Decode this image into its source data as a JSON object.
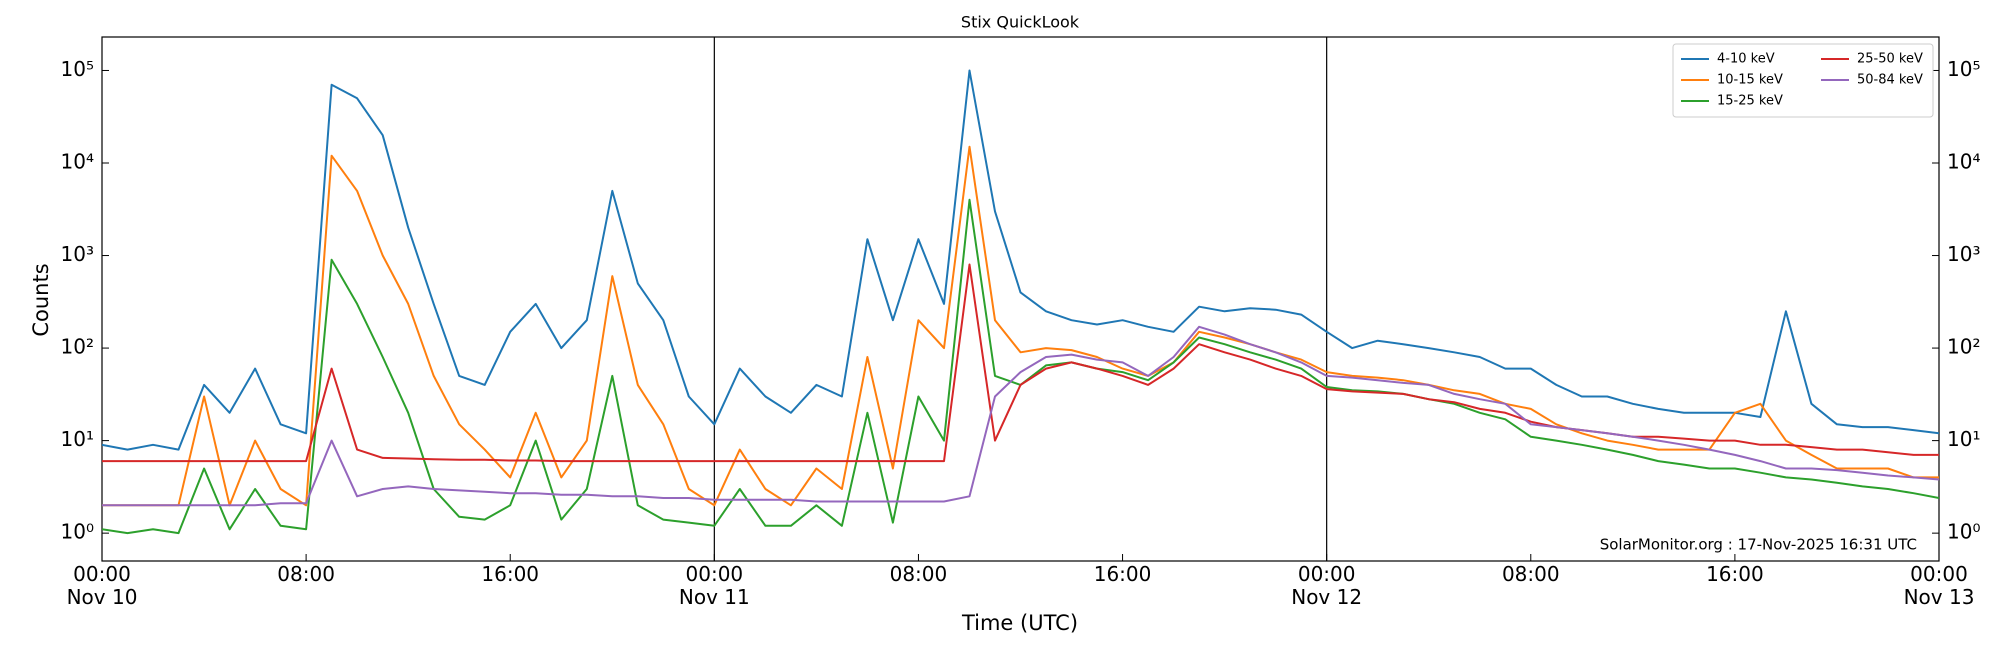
{
  "chart_data": {
    "type": "line",
    "title": "Stix QuickLook",
    "xlabel": "Time (UTC)",
    "ylabel": "Counts",
    "annotation": "SolarMonitor.org : 17-Nov-2025 16:31 UTC",
    "log_y": true,
    "legend": "upper right",
    "legend_columns": 2,
    "day_lines": true,
    "xlim": [
      "Nov 10 00:00",
      "Nov 13 00:00"
    ],
    "xticks": [
      {
        "value": "Nov 10 00:00",
        "label": "00:00\nNov 10"
      },
      {
        "value": "Nov 10 08:00",
        "label": "08:00"
      },
      {
        "value": "Nov 10 16:00",
        "label": "16:00"
      },
      {
        "value": "Nov 11 00:00",
        "label": "00:00\nNov 11"
      },
      {
        "value": "Nov 11 08:00",
        "label": "08:00"
      },
      {
        "value": "Nov 11 16:00",
        "label": "16:00"
      },
      {
        "value": "Nov 12 00:00",
        "label": "00:00\nNov 12"
      },
      {
        "value": "Nov 12 08:00",
        "label": "08:00"
      },
      {
        "value": "Nov 12 16:00",
        "label": "16:00"
      },
      {
        "value": "Nov 13 00:00",
        "label": "00:00\nNov 13"
      }
    ],
    "ylim": [
      0.5,
      230000
    ],
    "yticks": [
      {
        "value": 1,
        "label": "10⁰"
      },
      {
        "value": 10,
        "label": "10¹"
      },
      {
        "value": 100,
        "label": "10²"
      },
      {
        "value": 1000,
        "label": "10³"
      },
      {
        "value": 10000,
        "label": "10⁴"
      },
      {
        "value": 100000,
        "label": "10⁵"
      }
    ],
    "x": [
      "Nov 10 00:00",
      "Nov 10 01:00",
      "Nov 10 02:00",
      "Nov 10 03:00",
      "Nov 10 04:00",
      "Nov 10 05:00",
      "Nov 10 06:00",
      "Nov 10 07:00",
      "Nov 10 08:00",
      "Nov 10 09:00",
      "Nov 10 10:00",
      "Nov 10 11:00",
      "Nov 10 12:00",
      "Nov 10 13:00",
      "Nov 10 14:00",
      "Nov 10 15:00",
      "Nov 10 16:00",
      "Nov 10 17:00",
      "Nov 10 18:00",
      "Nov 10 19:00",
      "Nov 10 20:00",
      "Nov 10 21:00",
      "Nov 10 22:00",
      "Nov 10 23:00",
      "Nov 11 00:00",
      "Nov 11 01:00",
      "Nov 11 02:00",
      "Nov 11 03:00",
      "Nov 11 04:00",
      "Nov 11 05:00",
      "Nov 11 06:00",
      "Nov 11 07:00",
      "Nov 11 08:00",
      "Nov 11 09:00",
      "Nov 11 10:00",
      "Nov 11 11:00",
      "Nov 11 12:00",
      "Nov 11 13:00",
      "Nov 11 14:00",
      "Nov 11 15:00",
      "Nov 11 16:00",
      "Nov 11 17:00",
      "Nov 11 18:00",
      "Nov 11 19:00",
      "Nov 11 20:00",
      "Nov 11 21:00",
      "Nov 11 22:00",
      "Nov 11 23:00",
      "Nov 12 00:00",
      "Nov 12 01:00",
      "Nov 12 02:00",
      "Nov 12 03:00",
      "Nov 12 04:00",
      "Nov 12 05:00",
      "Nov 12 06:00",
      "Nov 12 07:00",
      "Nov 12 08:00",
      "Nov 12 09:00",
      "Nov 12 10:00",
      "Nov 12 11:00",
      "Nov 12 12:00",
      "Nov 12 13:00",
      "Nov 12 14:00",
      "Nov 12 15:00",
      "Nov 12 16:00",
      "Nov 12 17:00",
      "Nov 12 18:00",
      "Nov 12 19:00",
      "Nov 12 20:00",
      "Nov 12 21:00",
      "Nov 12 22:00",
      "Nov 12 23:00",
      "Nov 13 00:00"
    ],
    "series": [
      {
        "name": "4-10 keV",
        "color": "#1f77b4",
        "values": [
          9,
          8,
          9,
          8,
          40,
          20,
          60,
          15,
          12,
          70000,
          50000,
          20000,
          2000,
          300,
          50,
          40,
          150,
          300,
          100,
          200,
          5000,
          500,
          200,
          30,
          15,
          60,
          30,
          20,
          40,
          30,
          1500,
          200,
          1500,
          300,
          100000,
          3000,
          400,
          250,
          200,
          180,
          200,
          170,
          150,
          280,
          250,
          270,
          260,
          230,
          150,
          100,
          120,
          110,
          100,
          90,
          80,
          60,
          60,
          40,
          30,
          30,
          25,
          22,
          20,
          20,
          20,
          18,
          250,
          25,
          15,
          14,
          14,
          13,
          12
        ]
      },
      {
        "name": "10-15 keV",
        "color": "#ff7f0e",
        "values": [
          2,
          2,
          2,
          2,
          30,
          2,
          10,
          3,
          2,
          12000,
          5000,
          1000,
          300,
          50,
          15,
          8,
          4,
          20,
          4,
          10,
          600,
          40,
          15,
          3,
          2,
          8,
          3,
          2,
          5,
          3,
          80,
          5,
          200,
          100,
          15000,
          200,
          90,
          100,
          95,
          80,
          60,
          50,
          70,
          150,
          130,
          110,
          90,
          75,
          55,
          50,
          48,
          45,
          40,
          35,
          32,
          25,
          22,
          15,
          12,
          10,
          9,
          8,
          8,
          8,
          20,
          25,
          10,
          7,
          5,
          5,
          5,
          4,
          4
        ]
      },
      {
        "name": "15-25 keV",
        "color": "#2ca02c",
        "values": [
          1.1,
          1.0,
          1.1,
          1.0,
          5,
          1.1,
          3,
          1.2,
          1.1,
          900,
          300,
          80,
          20,
          3,
          1.5,
          1.4,
          2,
          10,
          1.4,
          3,
          50,
          2,
          1.4,
          1.3,
          1.2,
          3,
          1.2,
          1.2,
          2,
          1.2,
          20,
          1.3,
          30,
          10,
          4000,
          50,
          40,
          65,
          70,
          60,
          55,
          45,
          70,
          130,
          110,
          90,
          75,
          60,
          38,
          35,
          34,
          32,
          28,
          25,
          20,
          17,
          11,
          10,
          9,
          8,
          7,
          6,
          5.5,
          5,
          5,
          4.5,
          4,
          3.8,
          3.5,
          3.2,
          3,
          2.7,
          2.4
        ]
      },
      {
        "name": "25-50 keV",
        "color": "#d62728",
        "values": [
          6,
          6,
          6,
          6,
          6,
          6,
          6,
          6,
          6,
          60,
          8,
          6.5,
          6.4,
          6.3,
          6.2,
          6.2,
          6.1,
          6.1,
          6,
          6,
          6,
          6,
          6,
          6,
          6,
          6,
          6,
          6,
          6,
          6,
          6,
          6,
          6,
          6,
          800,
          10,
          40,
          60,
          70,
          60,
          50,
          40,
          60,
          110,
          90,
          75,
          60,
          50,
          36,
          34,
          33,
          32,
          28,
          26,
          22,
          20,
          16,
          14,
          13,
          12,
          11,
          11,
          10.5,
          10,
          10,
          9,
          9,
          8.5,
          8,
          8,
          7.5,
          7,
          7
        ]
      },
      {
        "name": "50-84 keV",
        "color": "#9467bd",
        "values": [
          2,
          2,
          2,
          2,
          2,
          2,
          2,
          2.1,
          2.1,
          10,
          2.5,
          3,
          3.2,
          3,
          2.9,
          2.8,
          2.7,
          2.7,
          2.6,
          2.6,
          2.5,
          2.5,
          2.4,
          2.4,
          2.3,
          2.3,
          2.3,
          2.3,
          2.2,
          2.2,
          2.2,
          2.2,
          2.2,
          2.2,
          2.5,
          30,
          55,
          80,
          85,
          75,
          70,
          50,
          80,
          170,
          140,
          110,
          90,
          70,
          50,
          48,
          45,
          42,
          40,
          32,
          28,
          25,
          15,
          14,
          13,
          12,
          11,
          10,
          9,
          8,
          7,
          6,
          5,
          5,
          4.8,
          4.5,
          4.2,
          4,
          3.8
        ]
      }
    ]
  }
}
